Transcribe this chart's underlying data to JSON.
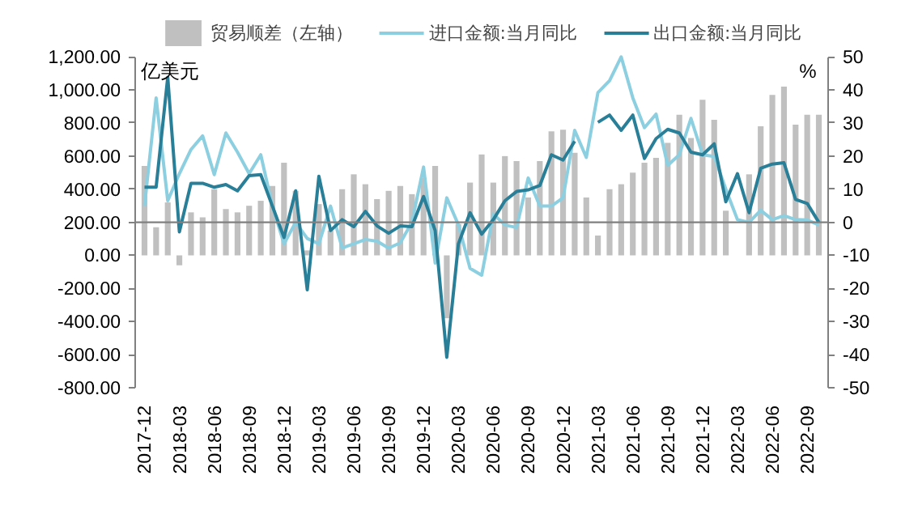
{
  "chart_data": {
    "type": "bar",
    "categories": [
      "2017-12",
      null,
      null,
      "2018-03",
      null,
      null,
      "2018-06",
      null,
      null,
      "2018-09",
      null,
      null,
      "2018-12",
      null,
      null,
      "2019-03",
      null,
      null,
      "2019-06",
      null,
      null,
      "2019-09",
      null,
      null,
      "2019-12",
      null,
      null,
      "2020-03",
      null,
      null,
      "2020-06",
      null,
      null,
      "2020-09",
      null,
      null,
      "2020-12",
      null,
      null,
      "2021-03",
      null,
      null,
      "2021-06",
      null,
      null,
      "2021-09",
      null,
      null,
      "2021-12",
      null,
      null,
      "2022-03",
      null,
      null,
      "2022-06",
      null,
      null,
      "2022-09",
      null
    ],
    "series": [
      {
        "name": "贸易顺差（左轴）",
        "color": "#c0c0c0",
        "values": [
          540,
          170,
          320,
          -60,
          260,
          230,
          400,
          280,
          260,
          300,
          330,
          420,
          560,
          390,
          30,
          310,
          150,
          400,
          490,
          430,
          340,
          390,
          420,
          370,
          470,
          540,
          -380,
          190,
          440,
          610,
          440,
          600,
          570,
          350,
          570,
          750,
          760,
          620,
          350,
          120,
          400,
          430,
          500,
          560,
          590,
          680,
          850,
          710,
          940,
          820,
          270,
          null,
          490,
          780,
          970,
          1020,
          790,
          850,
          850
        ]
      },
      {
        "name": "进口金额:当月同比",
        "type": "line",
        "axis": "y2",
        "color": "#8ccfe0",
        "values": [
          4.9,
          37.6,
          6.5,
          14.7,
          22,
          26.1,
          14.4,
          27,
          21.2,
          14.7,
          20.4,
          4.9,
          -6.5,
          0,
          -4.9,
          -6.5,
          4.9,
          -7.8,
          -6.5,
          -5.2,
          -5.7,
          -7.8,
          -6.2,
          0,
          16.7,
          -12.3,
          7.4,
          -0.8,
          -13.9,
          -16,
          2.5,
          -0.8,
          -1.6,
          13.4,
          4.9,
          4.9,
          7.4,
          27.8,
          19.6,
          39.2,
          42.8,
          50,
          37.6,
          28.6,
          32.7,
          17.2,
          20.4,
          31.4,
          20.4,
          19.9,
          10,
          0.8,
          0,
          3.6,
          0.8,
          2,
          0.8,
          0.7,
          -0.8
        ]
      },
      {
        "name": "出口金额:当月同比",
        "type": "line",
        "axis": "y2",
        "color": "#2a7f98",
        "values": [
          10.6,
          10.6,
          43.8,
          -2.9,
          11.8,
          11.8,
          10.6,
          11.4,
          9.5,
          14.1,
          14.4,
          4.9,
          -4.6,
          9.5,
          -20.4,
          13.9,
          -2.5,
          0.8,
          -1.3,
          3.3,
          -1.1,
          -3.3,
          -1.1,
          -1.3,
          7.8,
          -2.5,
          -40.8,
          -6.5,
          2.9,
          -3.6,
          0.8,
          6.5,
          9.3,
          9.8,
          11.1,
          20.4,
          18.8,
          24.5,
          null,
          30.2,
          32.4,
          27.8,
          32.4,
          19.3,
          25.3,
          28.1,
          27,
          21.2,
          20.4,
          23.7,
          6.2,
          14.7,
          2.9,
          16.3,
          17.6,
          18,
          6.9,
          5.7,
          0
        ]
      }
    ],
    "ylabel": "亿美元",
    "y2label": "%",
    "ylim": [
      -800,
      1200
    ],
    "yticks": [
      {
        "value": -800,
        "label": "-800.00"
      },
      {
        "value": -600,
        "label": "-600.00"
      },
      {
        "value": -400,
        "label": "-400.00"
      },
      {
        "value": -200,
        "label": "-200.00"
      },
      {
        "value": 0,
        "label": "0.00"
      },
      {
        "value": 200,
        "label": "200.00"
      },
      {
        "value": 400,
        "label": "400.00"
      },
      {
        "value": 600,
        "label": "600.00"
      },
      {
        "value": 800,
        "label": "800.00"
      },
      {
        "value": 1000,
        "label": "1,000.00"
      },
      {
        "value": 1200,
        "label": "1,200.00"
      }
    ],
    "y2lim": [
      -50,
      50
    ],
    "y2ticks": [
      -50,
      -40,
      -30,
      -20,
      -10,
      0,
      10,
      20,
      30,
      40,
      50
    ],
    "ref_lines": [
      {
        "axis": "y2",
        "value": 0,
        "color": "#808080"
      }
    ],
    "grid": false,
    "legend": "top",
    "marker": "none",
    "line_style": "solid"
  }
}
